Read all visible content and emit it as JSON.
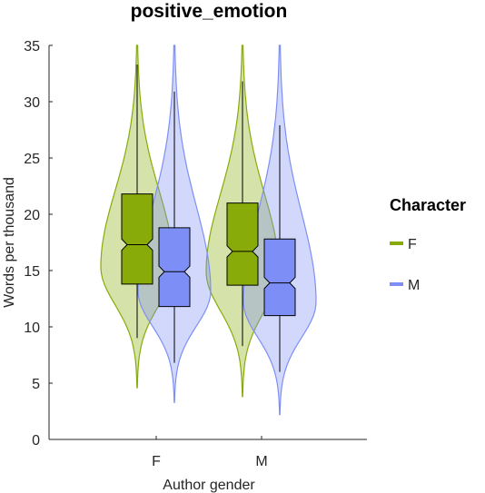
{
  "chart_data": {
    "type": "violin",
    "title": "positive_emotion",
    "xlabel": "Author gender",
    "ylabel": "Words per thousand",
    "categories": [
      "F",
      "M"
    ],
    "ylim": [
      0,
      35
    ],
    "yticks": [
      0,
      5,
      10,
      15,
      20,
      25,
      30,
      35
    ],
    "grid": false,
    "legend": {
      "title": "Character",
      "placement": "right"
    },
    "series": [
      {
        "name": "F",
        "color": "#88ab09",
        "groups": [
          {
            "category": "F",
            "whisker_low": 9.0,
            "q1": 13.8,
            "median": 17.3,
            "q3": 21.8,
            "whisker_high": 33.3,
            "notch_low": 16.8,
            "notch_high": 17.8,
            "min": 4.6,
            "max": 35.0
          },
          {
            "category": "M",
            "whisker_low": 8.3,
            "q1": 13.7,
            "median": 16.7,
            "q3": 21.0,
            "whisker_high": 31.8,
            "notch_low": 16.2,
            "notch_high": 17.2,
            "min": 3.8,
            "max": 35.0
          }
        ]
      },
      {
        "name": "M",
        "color": "#7d8ff7",
        "groups": [
          {
            "category": "F",
            "whisker_low": 6.8,
            "q1": 11.8,
            "median": 14.9,
            "q3": 18.8,
            "whisker_high": 30.9,
            "notch_low": 14.4,
            "notch_high": 15.4,
            "min": 3.3,
            "max": 35.0
          },
          {
            "category": "M",
            "whisker_low": 6.0,
            "q1": 11.0,
            "median": 13.9,
            "q3": 17.8,
            "whisker_high": 27.9,
            "notch_low": 13.4,
            "notch_high": 14.4,
            "min": 2.2,
            "max": 35.0
          }
        ]
      }
    ]
  }
}
